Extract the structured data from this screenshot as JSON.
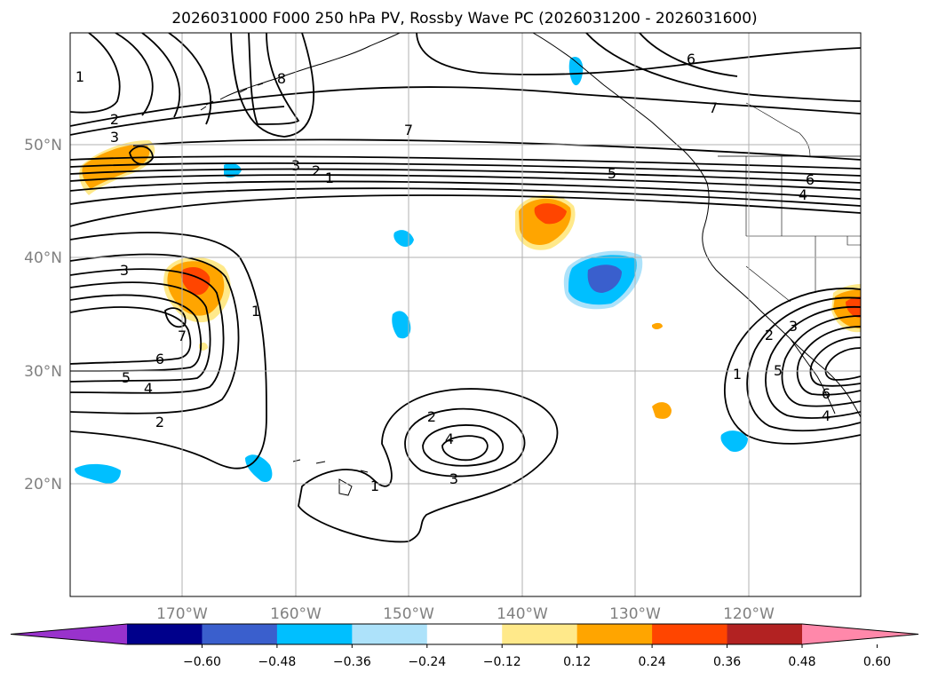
{
  "title": "2026031000 F000 250 hPa PV, Rossby Wave PC (2026031200 - 2026031600)",
  "map": {
    "latitude_labels": [
      "50°N",
      "40°N",
      "30°N",
      "20°N"
    ],
    "longitude_labels": [
      "170°W",
      "160°W",
      "150°W",
      "140°W",
      "130°W",
      "120°W"
    ],
    "grid": true,
    "line_contour_labels": [
      "1",
      "2",
      "3",
      "6",
      "8",
      "7",
      "7",
      "3",
      "2",
      "1",
      "5",
      "6",
      "4",
      "3",
      "1",
      "7",
      "6",
      "5",
      "4",
      "2",
      "2",
      "4",
      "3",
      "1",
      "1",
      "3",
      "2",
      "5",
      "6",
      "4"
    ]
  },
  "colorbar": {
    "ticks": [
      "−0.60",
      "−0.48",
      "−0.36",
      "−0.24",
      "−0.12",
      "0.12",
      "0.24",
      "0.36",
      "0.48",
      "0.60"
    ],
    "colors": [
      "#9932cc",
      "#00008b",
      "#3a5fcd",
      "#00bfff",
      "#ade2fa",
      "#ffffff",
      "#ffe98a",
      "#ffa500",
      "#ff4500",
      "#b22222",
      "#ff88aa"
    ]
  },
  "colors": {
    "pos_low": "#ffe98a",
    "pos_mid": "#ffa500",
    "pos_high": "#ff4500",
    "neg_low": "#ade2fa",
    "neg_mid": "#00bfff",
    "neg_high": "#3a5fcd"
  }
}
